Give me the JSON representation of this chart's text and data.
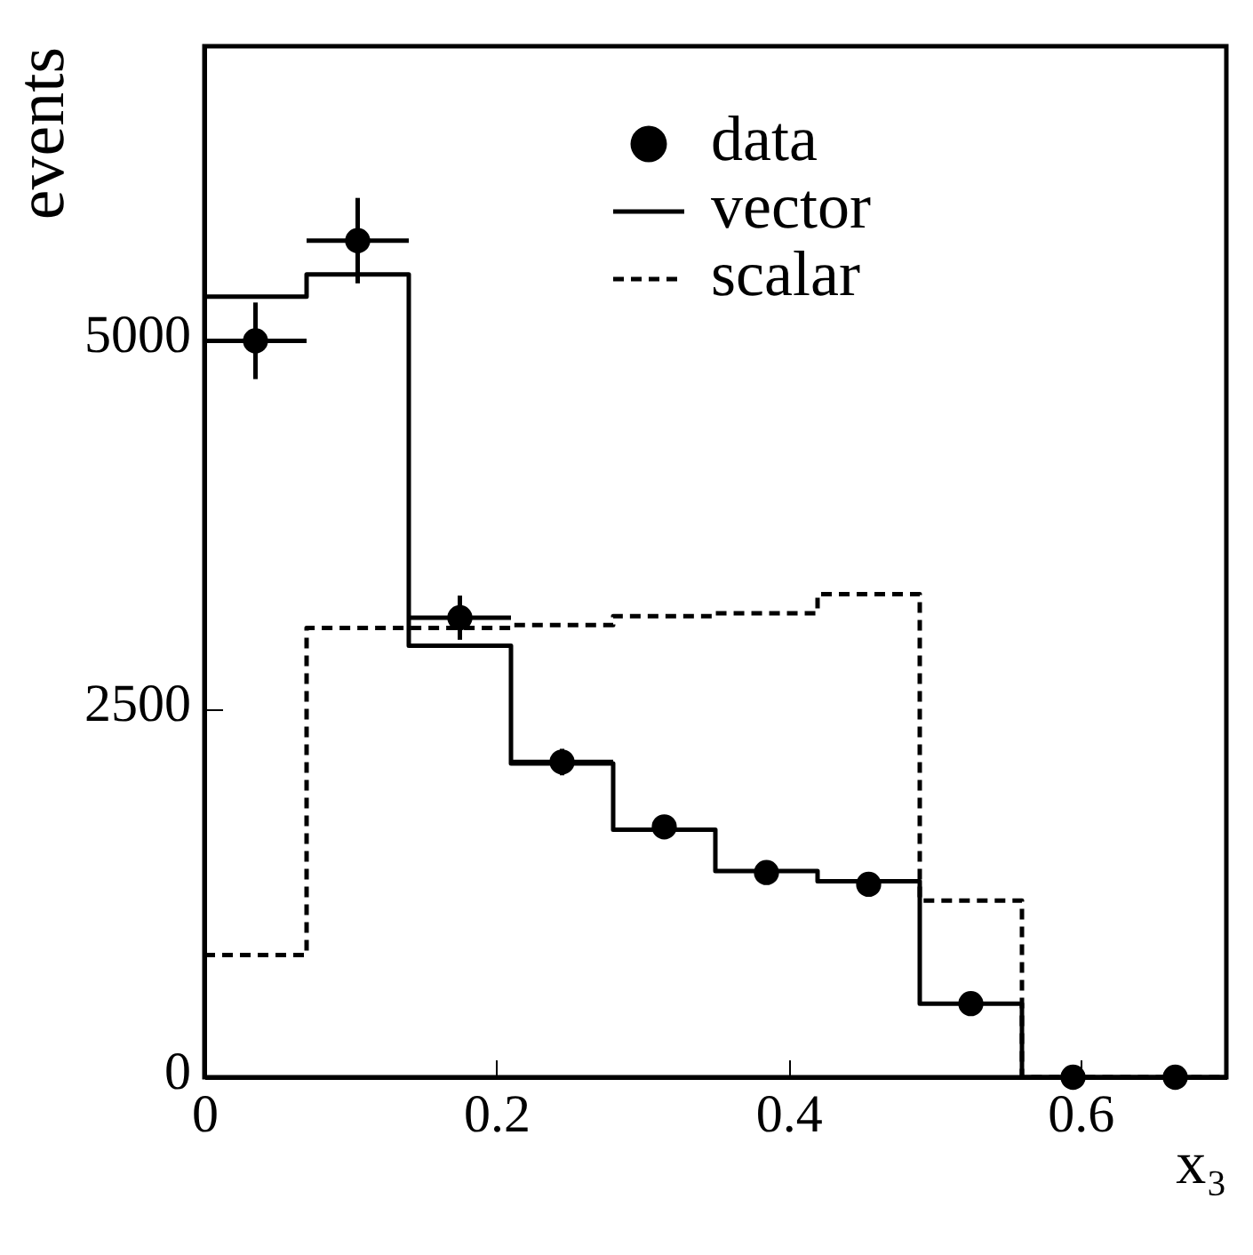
{
  "chart_data": {
    "type": "histogram",
    "xlabel": "x₃",
    "ylabel": "events",
    "bins": [
      0,
      0.07,
      0.14,
      0.21,
      0.28,
      0.35,
      0.42,
      0.49,
      0.56,
      0.63,
      0.7
    ],
    "series": [
      {
        "name": "data",
        "type": "scatter",
        "color": "#000000",
        "marker": "circle",
        "x": [
          0.035,
          0.105,
          0.175,
          0.245,
          0.315,
          0.385,
          0.455,
          0.525,
          0.595,
          0.665
        ],
        "values": [
          5000,
          5680,
          3120,
          2140,
          1700,
          1390,
          1310,
          500,
          0,
          0
        ],
        "errors": [
          260,
          290,
          150,
          90,
          null,
          null,
          null,
          null,
          null,
          null
        ],
        "xerrors": [
          0.035,
          0.035,
          0.035,
          0.035,
          null,
          null,
          null,
          null,
          null,
          null
        ]
      },
      {
        "name": "vector",
        "color": "#000000",
        "line_style": "solid",
        "values": [
          5300,
          5450,
          2930,
          2130,
          1680,
          1400,
          1330,
          500,
          0,
          0
        ]
      },
      {
        "name": "scalar",
        "color": "#000000",
        "line_style": "dashed",
        "values": [
          830,
          3050,
          3050,
          3070,
          3130,
          3150,
          3280,
          1200,
          0,
          0
        ]
      }
    ],
    "xlim": [
      0,
      0.7
    ],
    "ylim": [
      0,
      7000
    ],
    "xticks": [
      0,
      0.2,
      0.4,
      0.6
    ],
    "yticks": [
      0,
      2500,
      5000
    ],
    "legend": "top right"
  }
}
